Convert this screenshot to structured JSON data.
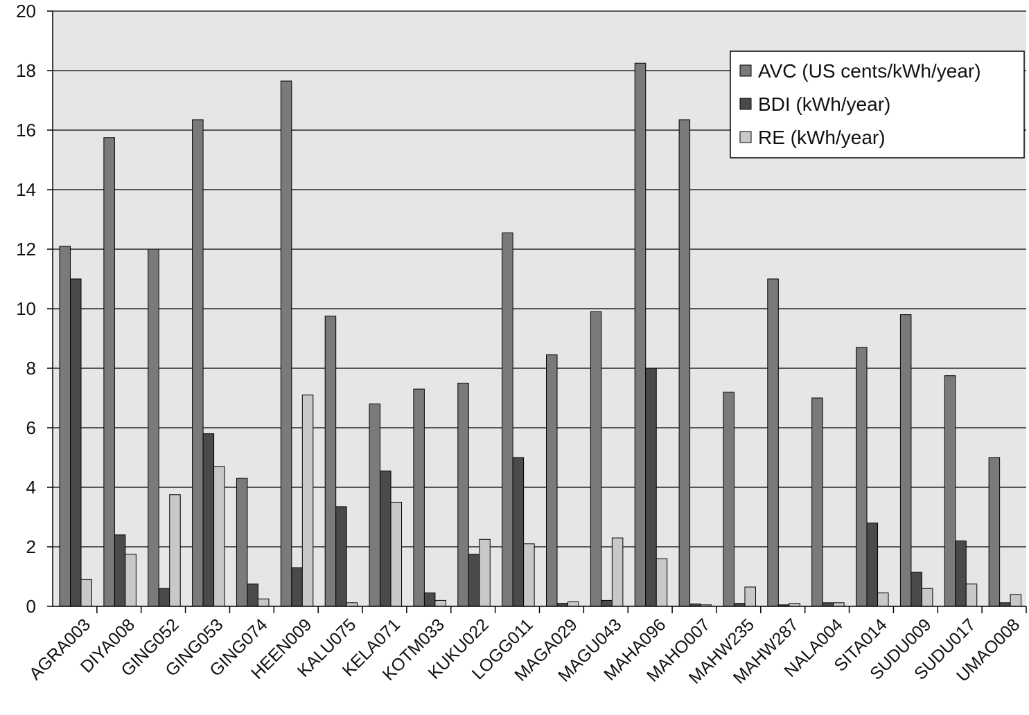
{
  "chart_data": {
    "type": "bar",
    "title": "",
    "xlabel": "",
    "ylabel": "",
    "ylim": [
      0,
      20
    ],
    "yticks": [
      0,
      2,
      4,
      6,
      8,
      10,
      12,
      14,
      16,
      18,
      20
    ],
    "grid": true,
    "legend_position": "top-right",
    "categories": [
      "AGRA003",
      "DIYA008",
      "GING052",
      "GING053",
      "GING074",
      "HEEN009",
      "KALU075",
      "KELA071",
      "KOTM033",
      "KUKU022",
      "LOGG011",
      "MAGA029",
      "MAGU043",
      "MAHA096",
      "MAHO007",
      "MAHW235",
      "MAHW287",
      "NALA004",
      "SITA014",
      "SUDU009",
      "SUDU017",
      "UMAO008"
    ],
    "series": [
      {
        "name": "AVC (US cents/kWh/year)",
        "color": "#7a7a7a",
        "values": [
          12.1,
          15.75,
          12.0,
          16.35,
          4.3,
          17.65,
          9.75,
          6.8,
          7.3,
          7.5,
          12.55,
          8.45,
          9.9,
          18.25,
          16.35,
          7.2,
          11.0,
          7.0,
          8.7,
          9.8,
          7.75,
          5.0
        ]
      },
      {
        "name": "BDI (kWh/year)",
        "color": "#4a4a4a",
        "values": [
          11.0,
          2.4,
          0.6,
          5.8,
          0.75,
          1.3,
          3.35,
          4.55,
          0.45,
          1.75,
          5.0,
          0.1,
          0.2,
          8.0,
          0.08,
          0.1,
          0.05,
          0.12,
          2.8,
          1.15,
          2.2,
          0.12
        ]
      },
      {
        "name": "RE (kWh/year)",
        "color": "#c8c8c8",
        "values": [
          0.9,
          1.75,
          3.75,
          4.7,
          0.25,
          7.1,
          0.12,
          3.5,
          0.2,
          2.25,
          2.1,
          0.15,
          2.3,
          1.6,
          0.05,
          0.65,
          0.1,
          0.12,
          0.45,
          0.6,
          0.75,
          0.4
        ]
      }
    ]
  }
}
